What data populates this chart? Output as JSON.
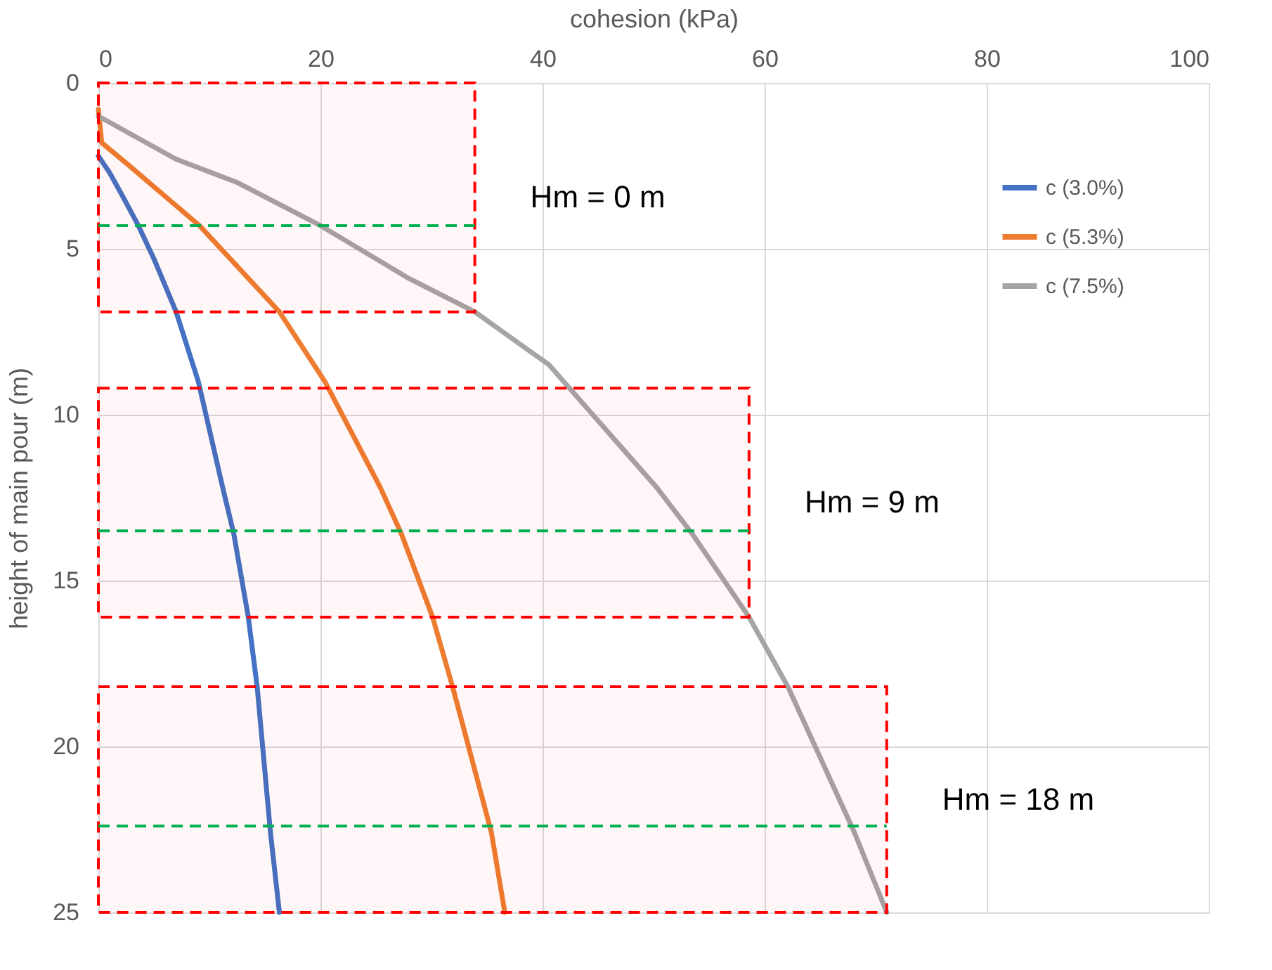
{
  "chart_data": {
    "type": "line",
    "xlabel": "cohesion (kPa)",
    "ylabel": "height of main pour (m)",
    "xlim": [
      0,
      100
    ],
    "xticks": [
      0,
      20,
      40,
      60,
      80,
      100
    ],
    "ylim": [
      25,
      0
    ],
    "yticks": [
      0,
      5,
      10,
      15,
      20,
      25
    ],
    "grid": true,
    "legend": "top right",
    "line_style": "solid",
    "series": [
      {
        "name": "c (3.0%)",
        "color": "#4472c4",
        "x": [
          0,
          1,
          2,
          3.6,
          5,
          7,
          9,
          11.2,
          12.2,
          13.5,
          14.3,
          15.5,
          16.3
        ],
        "values": [
          2.2,
          2.7,
          3.3,
          4.3,
          5.3,
          6.9,
          9,
          12.2,
          13.6,
          16.1,
          18.2,
          22.6,
          25
        ]
      },
      {
        "name": "c (5.3%)",
        "color": "#ed7d31",
        "x": [
          0,
          0.3,
          2.8,
          9.1,
          16.3,
          20.4,
          25.4,
          27.3,
          30.1,
          31.9,
          35.4,
          36.6
        ],
        "values": [
          0.8,
          1.8,
          2.5,
          4.3,
          6.9,
          9,
          12.2,
          13.6,
          16.1,
          18.2,
          22.6,
          25
        ]
      },
      {
        "name": "c (7.5%)",
        "color": "#a5a5a5",
        "x": [
          0,
          7,
          12.5,
          20,
          28,
          33.9,
          40.6,
          41.9,
          50.3,
          53.5,
          58.6,
          62.1,
          68.1,
          71
        ],
        "values": [
          1,
          2.3,
          3,
          4.3,
          5.9,
          6.9,
          8.5,
          9,
          12.2,
          13.6,
          16.1,
          18.2,
          22.6,
          25
        ]
      }
    ],
    "bands": [
      {
        "axis": "y",
        "from": 0,
        "to": 6.9,
        "label": "Hm = 0 m",
        "color": "#ff0000"
      },
      {
        "axis": "y",
        "from": 9.2,
        "to": 16.1,
        "label": "Hm = 9 m",
        "color": "#ff0000"
      },
      {
        "axis": "y",
        "from": 18.2,
        "to": 25,
        "label": "Hm = 18 m",
        "color": "#ff0000"
      }
    ],
    "ref_lines": [
      {
        "axis": "y",
        "value": 4.3,
        "color": "#00b050",
        "line_style": "dashed"
      },
      {
        "axis": "y",
        "value": 13.5,
        "color": "#00b050",
        "line_style": "dashed"
      },
      {
        "axis": "y",
        "value": 22.4,
        "color": "#00b050",
        "line_style": "dashed"
      }
    ]
  }
}
